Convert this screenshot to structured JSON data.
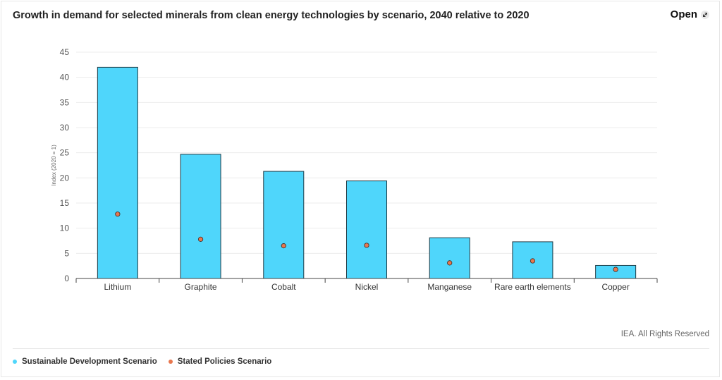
{
  "header": {
    "title": "Growth in demand for selected minerals from clean energy technologies by scenario, 2040 relative to 2020",
    "open_label": "Open"
  },
  "source_text": "IEA. All Rights Reserved",
  "colors": {
    "bar": "#4fd6fb",
    "bar_stroke": "#1e3a44",
    "dot": "#e8774e",
    "grid": "#ececec"
  },
  "chart_data": {
    "type": "bar",
    "title": "Growth in demand for selected minerals from clean energy technologies by scenario, 2040 relative to 2020",
    "xlabel": "",
    "ylabel": "Index (2020 = 1)",
    "ylim": [
      0,
      45
    ],
    "yticks": [
      0,
      5,
      10,
      15,
      20,
      25,
      30,
      35,
      40,
      45
    ],
    "grid": true,
    "legend_placement": "bottom-left",
    "categories": [
      "Lithium",
      "Graphite",
      "Cobalt",
      "Nickel",
      "Manganese",
      "Rare earth elements",
      "Copper"
    ],
    "series": [
      {
        "name": "Sustainable Development Scenario",
        "kind": "bar",
        "values": [
          42,
          24.7,
          21.3,
          19.4,
          8.1,
          7.3,
          2.6
        ]
      },
      {
        "name": "Stated Policies Scenario",
        "kind": "point",
        "values": [
          12.8,
          7.8,
          6.5,
          6.6,
          3.1,
          3.5,
          1.8
        ]
      }
    ]
  }
}
